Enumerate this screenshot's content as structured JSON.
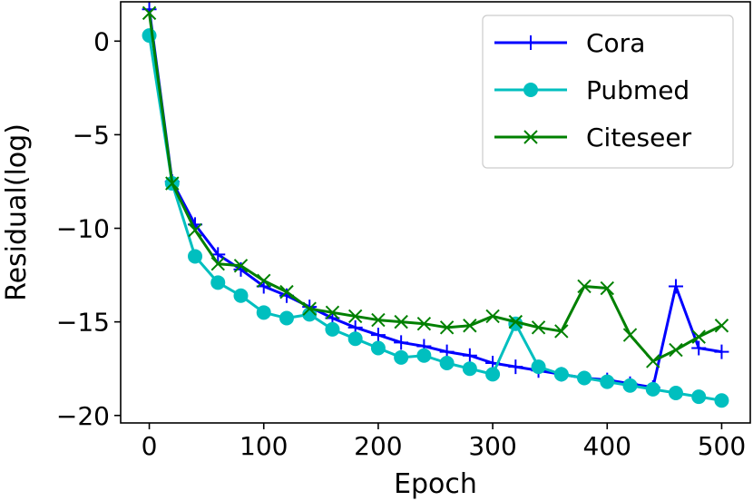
{
  "chart_data": {
    "type": "line",
    "title": "",
    "xlabel": "Epoch",
    "ylabel": "Residual(log)",
    "xlim": [
      -25,
      525
    ],
    "ylim": [
      -20.4,
      2.1
    ],
    "xticks": [
      0,
      100,
      200,
      300,
      400,
      500
    ],
    "yticks": [
      0,
      -5,
      -10,
      -15,
      -20
    ],
    "ytick_labels": [
      "0",
      "−5",
      "−10",
      "−15",
      "−20"
    ],
    "grid": false,
    "legend_position": "top-right",
    "x": [
      0,
      20,
      40,
      60,
      80,
      100,
      120,
      140,
      160,
      180,
      200,
      220,
      240,
      260,
      280,
      300,
      320,
      340,
      360,
      380,
      400,
      420,
      440,
      460,
      480,
      500
    ],
    "series": [
      {
        "name": "Cora",
        "color": "#0000ff",
        "marker": "plus",
        "values": [
          1.7,
          -7.5,
          -9.8,
          -11.4,
          -12.2,
          -13.1,
          -13.6,
          -14.2,
          -14.8,
          -15.3,
          -15.7,
          -16.1,
          -16.3,
          -16.6,
          -16.8,
          -17.2,
          -17.4,
          -17.6,
          -17.8,
          -18.0,
          -18.1,
          -18.3,
          -18.5,
          -13.1,
          -16.4,
          -16.6
        ]
      },
      {
        "name": "Pubmed",
        "color": "#00bfbf",
        "marker": "circle",
        "values": [
          0.3,
          -7.6,
          -11.5,
          -12.9,
          -13.6,
          -14.5,
          -14.8,
          -14.6,
          -15.4,
          -15.9,
          -16.4,
          -16.9,
          -16.8,
          -17.2,
          -17.5,
          -17.8,
          -15.1,
          -17.4,
          -17.8,
          -18.0,
          -18.2,
          -18.4,
          -18.6,
          -18.8,
          -19.0,
          -19.2
        ]
      },
      {
        "name": "Citeseer",
        "color": "#008000",
        "marker": "x",
        "values": [
          1.5,
          -7.6,
          -10.1,
          -11.9,
          -12.0,
          -12.8,
          -13.4,
          -14.3,
          -14.5,
          -14.7,
          -14.9,
          -15.0,
          -15.1,
          -15.3,
          -15.2,
          -14.7,
          -15.0,
          -15.3,
          -15.5,
          -13.1,
          -13.2,
          -15.7,
          -17.1,
          -16.5,
          -15.8,
          -15.2
        ]
      }
    ]
  }
}
